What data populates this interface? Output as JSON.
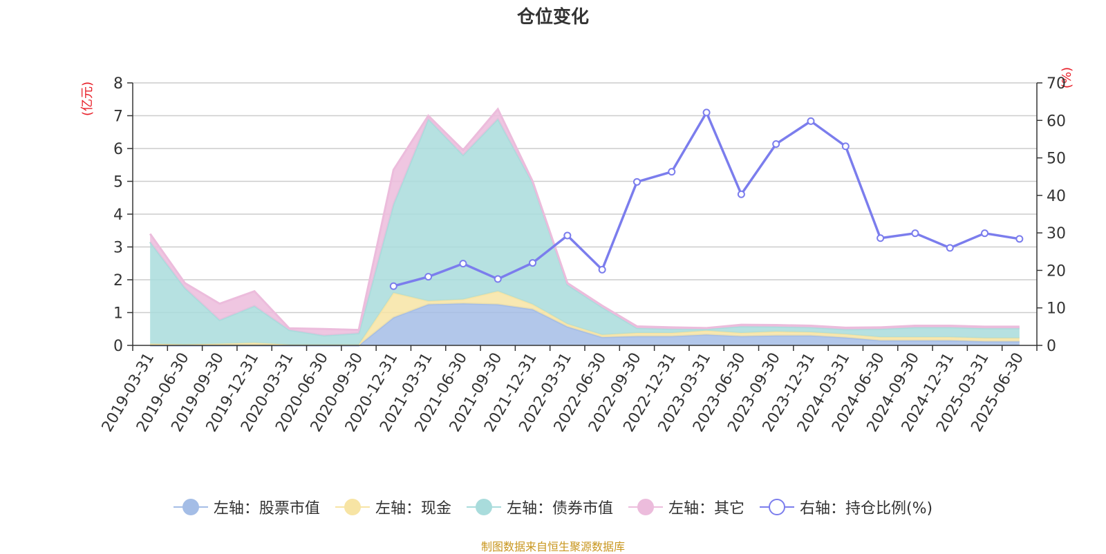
{
  "title": "仓位变化",
  "left_unit": "(亿元)",
  "right_unit": "(%)",
  "source": "制图数据来自恒生聚源数据库",
  "chart_data": {
    "type": "area",
    "categories": [
      "2019-03-31",
      "2019-06-30",
      "2019-09-30",
      "2019-12-31",
      "2020-03-31",
      "2020-06-30",
      "2020-09-30",
      "2020-12-31",
      "2021-03-31",
      "2021-06-30",
      "2021-09-30",
      "2021-12-31",
      "2022-03-31",
      "2022-06-30",
      "2022-09-30",
      "2022-12-31",
      "2023-03-31",
      "2023-06-30",
      "2023-09-30",
      "2023-12-31",
      "2024-03-31",
      "2024-06-30",
      "2024-09-30",
      "2024-12-31",
      "2025-03-31",
      "2025-06-30"
    ],
    "y_left": {
      "min": 0,
      "max": 8,
      "ticks": [
        0,
        1,
        2,
        3,
        4,
        5,
        6,
        7,
        8
      ]
    },
    "y_right": {
      "min": 0,
      "max": 70,
      "ticks": [
        0,
        10,
        20,
        30,
        40,
        50,
        60,
        70
      ]
    },
    "series": [
      {
        "name": "左轴：股票市值",
        "axis": "left",
        "stack": true,
        "color": "#a4bde6",
        "values": [
          0,
          0,
          0,
          0,
          0,
          0,
          0,
          0.85,
          1.25,
          1.28,
          1.25,
          1.1,
          0.57,
          0.25,
          0.28,
          0.28,
          0.33,
          0.28,
          0.3,
          0.3,
          0.24,
          0.15,
          0.15,
          0.15,
          0.12,
          0.12
        ]
      },
      {
        "name": "左轴：现金",
        "axis": "left",
        "stack": true,
        "color": "#f7e4a4",
        "values": [
          0.05,
          0.03,
          0.05,
          0.08,
          0.02,
          0.02,
          0.02,
          0.75,
          0.1,
          0.12,
          0.4,
          0.15,
          0.08,
          0.07,
          0.1,
          0.1,
          0.12,
          0.1,
          0.12,
          0.1,
          0.1,
          0.1,
          0.1,
          0.1,
          0.1,
          0.1
        ]
      },
      {
        "name": "左轴：债券市值",
        "axis": "left",
        "stack": true,
        "color": "#a9dcdc",
        "values": [
          3.1,
          1.72,
          0.72,
          1.12,
          0.45,
          0.28,
          0.35,
          2.7,
          5.55,
          4.4,
          5.25,
          3.7,
          1.2,
          0.84,
          0.15,
          0.12,
          0.05,
          0.2,
          0.15,
          0.15,
          0.15,
          0.25,
          0.3,
          0.3,
          0.3,
          0.3
        ]
      },
      {
        "name": "左轴：其它",
        "axis": "left",
        "stack": true,
        "color": "#ecbcdc",
        "values": [
          0.25,
          0.15,
          0.5,
          0.45,
          0.05,
          0.2,
          0.1,
          1.05,
          0.1,
          0.15,
          0.3,
          0.05,
          0.05,
          0.05,
          0.05,
          0.05,
          0.03,
          0.05,
          0.05,
          0.05,
          0.05,
          0.05,
          0.05,
          0.05,
          0.05,
          0.05
        ]
      },
      {
        "name": "右轴：持仓比例(%)",
        "axis": "right",
        "type": "line",
        "color": "#7b7ded",
        "values": [
          null,
          null,
          null,
          null,
          null,
          null,
          null,
          15.8,
          18.3,
          21.8,
          17.7,
          22,
          29.3,
          20.2,
          43.6,
          46.3,
          62.1,
          40.3,
          53.7,
          59.8,
          53.1,
          28.6,
          29.9,
          26,
          29.9,
          28.4
        ]
      }
    ],
    "legend_position": "bottom",
    "grid": true
  }
}
